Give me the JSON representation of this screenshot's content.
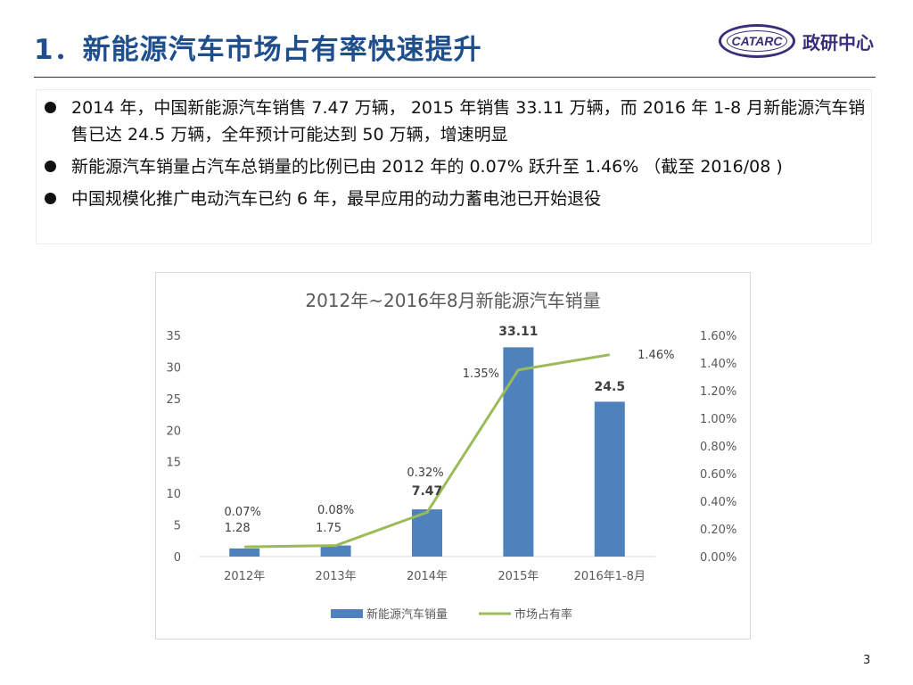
{
  "slide": {
    "title": "1．新能源汽车市场占有率快速提升",
    "logo_text": "CATARC",
    "logo_cn": "政研中心",
    "page_number": "3"
  },
  "bullets": [
    "2014 年，中国新能源汽车销售 7.47 万辆， 2015 年销售 33.11 万辆，而 2016 年 1-8 月新能源汽车销售已达 24.5 万辆，全年预计可能达到 50 万辆，增速明显",
    "新能源汽车销量占汽车总销量的比例已由 2012 年的 0.07% 跃升至 1.46% （截至 2016/08 )",
    "中国规模化推广电动汽车已约 6 年，最早应用的动力蓄电池已开始退役"
  ],
  "chart_data": {
    "type": "bar",
    "title": "2012年~2016年8月新能源汽车销量",
    "categories": [
      "2012年",
      "2013年",
      "2014年",
      "2015年",
      "2016年1-8月"
    ],
    "series": [
      {
        "name": "新能源汽车销量",
        "type": "bar",
        "axis": "left",
        "values": [
          1.28,
          1.75,
          7.47,
          33.11,
          24.5
        ],
        "labels": [
          "1.28",
          "1.75",
          "7.47",
          "33.11",
          "24.5"
        ]
      },
      {
        "name": "市场占有率",
        "type": "line",
        "axis": "right",
        "values": [
          0.07,
          0.08,
          0.32,
          1.35,
          1.46
        ],
        "labels": [
          "0.07%",
          "0.08%",
          "0.32%",
          "1.35%",
          "1.46%"
        ]
      }
    ],
    "ylim": [
      0,
      35
    ],
    "yticks": [
      "0",
      "5",
      "10",
      "15",
      "20",
      "25",
      "30",
      "35"
    ],
    "y2lim": [
      0,
      1.6
    ],
    "y2ticks": [
      "0.00%",
      "0.20%",
      "0.40%",
      "0.60%",
      "0.80%",
      "1.00%",
      "1.20%",
      "1.40%",
      "1.60%"
    ],
    "colors": {
      "bar": "#4f81bd",
      "line": "#9bbb59"
    },
    "legend_position": "bottom"
  }
}
